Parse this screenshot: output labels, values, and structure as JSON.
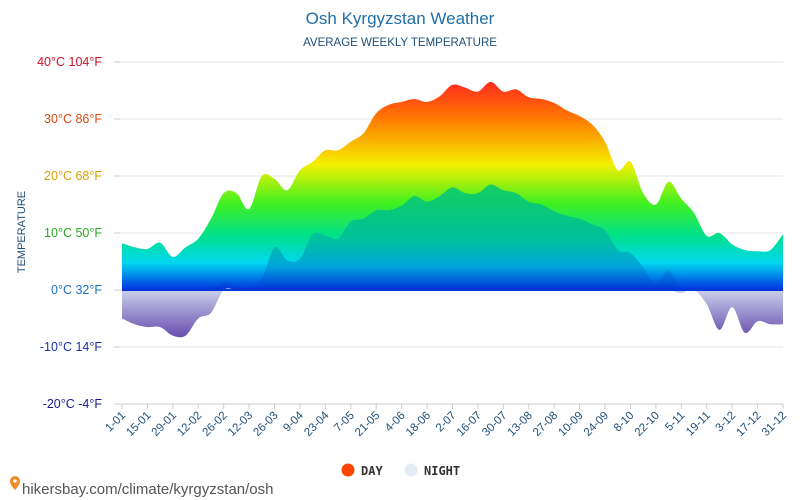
{
  "chart_data": {
    "type": "area",
    "title": "Osh Kyrgyzstan Weather",
    "subtitle": "AVERAGE WEEKLY TEMPERATURE",
    "ylabel": "TEMPERATURE",
    "ylim": [
      -20,
      40
    ],
    "grid": true,
    "legend_position": "bottom-center",
    "y_ticks": [
      {
        "value": 40,
        "label": "40°C 104°F",
        "color": "#d0102a"
      },
      {
        "value": 30,
        "label": "30°C 86°F",
        "color": "#d84a10"
      },
      {
        "value": 20,
        "label": "20°C 68°F",
        "color": "#d8a000"
      },
      {
        "value": 10,
        "label": "10°C 50°F",
        "color": "#28a820"
      },
      {
        "value": 0,
        "label": "0°C 32°F",
        "color": "#1a70c0"
      },
      {
        "value": -10,
        "label": "-10°C 14°F",
        "color": "#1a30b0"
      },
      {
        "value": -20,
        "label": "-20°C -4°F",
        "color": "#1a1a90"
      }
    ],
    "categories": [
      "1-01",
      "15-01",
      "29-01",
      "12-02",
      "26-02",
      "12-03",
      "26-03",
      "9-04",
      "23-04",
      "7-05",
      "21-05",
      "4-06",
      "18-06",
      "2-07",
      "16-07",
      "30-07",
      "13-08",
      "27-08",
      "10-09",
      "24-09",
      "8-10",
      "22-10",
      "5-11",
      "19-11",
      "3-12",
      "17-12",
      "31-12"
    ],
    "x": [
      "1-01",
      "8-01",
      "15-01",
      "22-01",
      "29-01",
      "5-02",
      "12-02",
      "19-02",
      "26-02",
      "5-03",
      "12-03",
      "19-03",
      "26-03",
      "2-04",
      "9-04",
      "16-04",
      "23-04",
      "30-04",
      "7-05",
      "14-05",
      "21-05",
      "28-05",
      "4-06",
      "11-06",
      "18-06",
      "25-06",
      "2-07",
      "9-07",
      "16-07",
      "23-07",
      "30-07",
      "6-08",
      "13-08",
      "20-08",
      "27-08",
      "3-09",
      "10-09",
      "17-09",
      "24-09",
      "1-10",
      "8-10",
      "15-10",
      "22-10",
      "29-10",
      "5-11",
      "12-11",
      "19-11",
      "26-11",
      "3-12",
      "10-12",
      "17-12",
      "24-12",
      "31-12"
    ],
    "series": [
      {
        "name": "DAY",
        "color": "#ff4500",
        "values": [
          8.2,
          7.5,
          7.2,
          8.3,
          5.8,
          7.5,
          9.0,
          12.5,
          17.0,
          17.0,
          14.2,
          20.0,
          19.5,
          17.5,
          21.0,
          22.5,
          24.5,
          24.5,
          26.0,
          27.5,
          31.0,
          32.5,
          33.0,
          33.5,
          33.0,
          34.0,
          36.0,
          35.5,
          34.8,
          36.5,
          34.8,
          35.2,
          33.8,
          33.5,
          32.8,
          31.5,
          30.5,
          29.0,
          26.0,
          21.0,
          22.5,
          17.0,
          15.0,
          19.0,
          16.0,
          13.5,
          9.5,
          10.0,
          8.0,
          7.0,
          6.8,
          7.0,
          9.8
        ]
      },
      {
        "name": "NIGHT",
        "color": "#e4ebf5",
        "values": [
          -5.0,
          -6.0,
          -6.5,
          -6.5,
          -8.0,
          -8.0,
          -5.0,
          -4.0,
          1.5,
          0.5,
          0.5,
          2.0,
          7.5,
          5.2,
          5.5,
          9.8,
          9.5,
          9.0,
          12.0,
          12.5,
          14.0,
          14.0,
          14.8,
          16.5,
          15.5,
          16.5,
          18.0,
          17.0,
          17.0,
          18.5,
          17.5,
          17.0,
          15.5,
          15.0,
          13.8,
          13.0,
          12.5,
          11.5,
          10.5,
          7.0,
          6.5,
          4.0,
          1.0,
          3.5,
          -0.5,
          0.5,
          -2.5,
          -7.0,
          -3.0,
          -7.5,
          -5.5,
          -6.0,
          -6.0
        ]
      }
    ]
  },
  "source": "hikersbay.com/climate/kyrgyzstan/osh"
}
